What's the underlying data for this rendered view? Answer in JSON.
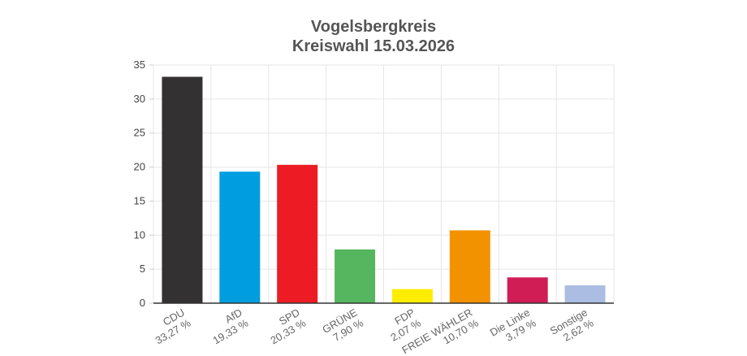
{
  "chart_data": {
    "type": "bar",
    "title": "Vogelsbergkreis",
    "subtitle": "Kreiswahl 15.03.2026",
    "xlabel": "",
    "ylabel": "",
    "ylim": [
      0,
      35
    ],
    "yticks": [
      0,
      5,
      10,
      15,
      20,
      25,
      30,
      35
    ],
    "grid": true,
    "categories": [
      "CDU",
      "AfD",
      "SPD",
      "GRÜNE",
      "FDP",
      "FREIE WÄHLER",
      "Die Linke",
      "Sonstige"
    ],
    "values": [
      33.27,
      19.33,
      20.33,
      7.9,
      2.07,
      10.7,
      3.79,
      2.62
    ],
    "value_labels": [
      "33,27 %",
      "19,33 %",
      "20,33 %",
      "7,90 %",
      "2,07 %",
      "10,70 %",
      "3,79 %",
      "2,62 %"
    ],
    "colors": [
      "#333132",
      "#009ee0",
      "#ed1c24",
      "#56b55f",
      "#ffed00",
      "#f39200",
      "#d11d56",
      "#abbde3"
    ]
  }
}
